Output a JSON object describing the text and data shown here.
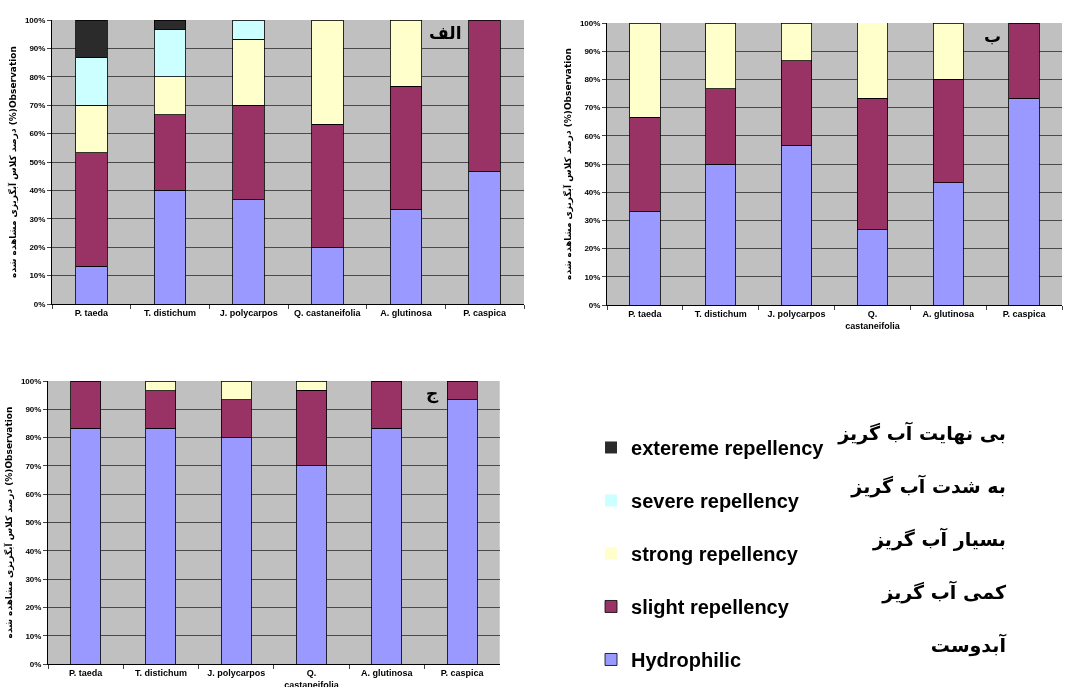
{
  "chart_data": [
    {
      "type": "bar",
      "stacked": true,
      "grid": "y",
      "ylabel": "درصد کلاس آبگریزی مشاهده شده (%)Observation",
      "annotations": [
        "الف"
      ],
      "categories": [
        "P. taeda",
        "T. distichum",
        "J. polycarpos",
        "Q. castaneifolia",
        "A. glutinosa",
        "P. caspica"
      ],
      "ylim": [
        0,
        100
      ],
      "yticks": [
        {
          "value": 0,
          "label": "0%"
        },
        {
          "value": 10,
          "label": "10%"
        },
        {
          "value": 20,
          "label": "20%"
        },
        {
          "value": 30,
          "label": "30%"
        },
        {
          "value": 40,
          "label": "40%"
        },
        {
          "value": 50,
          "label": "50%"
        },
        {
          "value": 60,
          "label": "60%"
        },
        {
          "value": 70,
          "label": "70%"
        },
        {
          "value": 80,
          "label": "80%"
        },
        {
          "value": 90,
          "label": "90%"
        },
        {
          "value": 100,
          "label": "100%"
        }
      ],
      "series": [
        {
          "color": "#9999ff",
          "values": [
            13.3,
            40,
            36.7,
            20,
            33.3,
            46.7
          ]
        },
        {
          "color": "#993366",
          "values": [
            40,
            26.7,
            33.3,
            43.3,
            43.3,
            53.3
          ]
        },
        {
          "color": "#ffffcc",
          "values": [
            16.7,
            13.3,
            23.3,
            36.7,
            23.3,
            0
          ]
        },
        {
          "color": "#ccffff",
          "values": [
            16.7,
            16.7,
            6.7,
            0,
            0,
            0
          ]
        },
        {
          "color": "#2b2b2b",
          "values": [
            13.3,
            3.3,
            0,
            0,
            0,
            0
          ]
        }
      ]
    },
    {
      "type": "bar",
      "stacked": true,
      "grid": "y",
      "ylabel": "درصد کلاس آبگریزی مشاهده شده (%)Observation",
      "annotations": [
        "ب"
      ],
      "categories": [
        "P. taeda",
        "T. distichum",
        "J. polycarpos",
        "Q. castaneifolia",
        "A. glutinosa",
        "P. caspica"
      ],
      "ylim": [
        0,
        100
      ],
      "yticks": [
        {
          "value": 0,
          "label": "0%"
        },
        {
          "value": 10,
          "label": "10%"
        },
        {
          "value": 20,
          "label": "20%"
        },
        {
          "value": 30,
          "label": "30%"
        },
        {
          "value": 40,
          "label": "40%"
        },
        {
          "value": 50,
          "label": "50%"
        },
        {
          "value": 60,
          "label": "60%"
        },
        {
          "value": 70,
          "label": "70%"
        },
        {
          "value": 80,
          "label": "80%"
        },
        {
          "value": 90,
          "label": "90%"
        },
        {
          "value": 100,
          "label": "100%"
        }
      ],
      "series": [
        {
          "color": "#9999ff",
          "values": [
            33.3,
            50,
            56.7,
            26.7,
            43.3,
            73.3
          ]
        },
        {
          "color": "#993366",
          "values": [
            33.3,
            26.7,
            30,
            46.7,
            36.7,
            26.7
          ]
        },
        {
          "color": "#ffffcc",
          "values": [
            33.3,
            23.3,
            13.3,
            26.7,
            20,
            0
          ]
        }
      ]
    },
    {
      "type": "bar",
      "stacked": true,
      "grid": "y",
      "legend": "right",
      "ylabel": "درصد کلاس آبگریزی مشاهده شده (%)Observation",
      "annotations": [
        "ج"
      ],
      "categories": [
        "P. taeda",
        "T. distichum",
        "J. polycarpos",
        "Q. castaneifolia",
        "A. glutinosa",
        "P. caspica"
      ],
      "ylim": [
        0,
        100
      ],
      "yticks": [
        {
          "value": 0,
          "label": "0%"
        },
        {
          "value": 10,
          "label": "10%"
        },
        {
          "value": 20,
          "label": "20%"
        },
        {
          "value": 30,
          "label": "30%"
        },
        {
          "value": 40,
          "label": "40%"
        },
        {
          "value": 50,
          "label": "50%"
        },
        {
          "value": 60,
          "label": "60%"
        },
        {
          "value": 70,
          "label": "70%"
        },
        {
          "value": 80,
          "label": "80%"
        },
        {
          "value": 90,
          "label": "90%"
        },
        {
          "value": 100,
          "label": "100%"
        }
      ],
      "series": [
        {
          "name": "Hydrophilic",
          "color": "#9999ff",
          "values": [
            83.3,
            83.3,
            80,
            70,
            83.3,
            93.3
          ]
        },
        {
          "name": "slight repellency",
          "color": "#993366",
          "values": [
            16.7,
            13.3,
            13.3,
            26.7,
            16.7,
            6.7
          ]
        },
        {
          "name": "strong repellency",
          "color": "#ffffcc",
          "values": [
            0,
            3.3,
            6.7,
            3.3,
            0,
            0
          ]
        },
        {
          "name": "severe repellency",
          "color": "#ccffff",
          "values": [
            0,
            0,
            0,
            0,
            0,
            0
          ]
        },
        {
          "name": "extereme repellency",
          "color": "#2b2b2b",
          "values": [
            0,
            0,
            0,
            0,
            0,
            0
          ]
        }
      ]
    },
    {
      "type": "other",
      "annotations": [
        "بی نهایت آب گریز",
        "به شدت آب گریز",
        "بسیار آب گریز",
        "کمی آب گریز",
        "آبدوست"
      ]
    }
  ]
}
